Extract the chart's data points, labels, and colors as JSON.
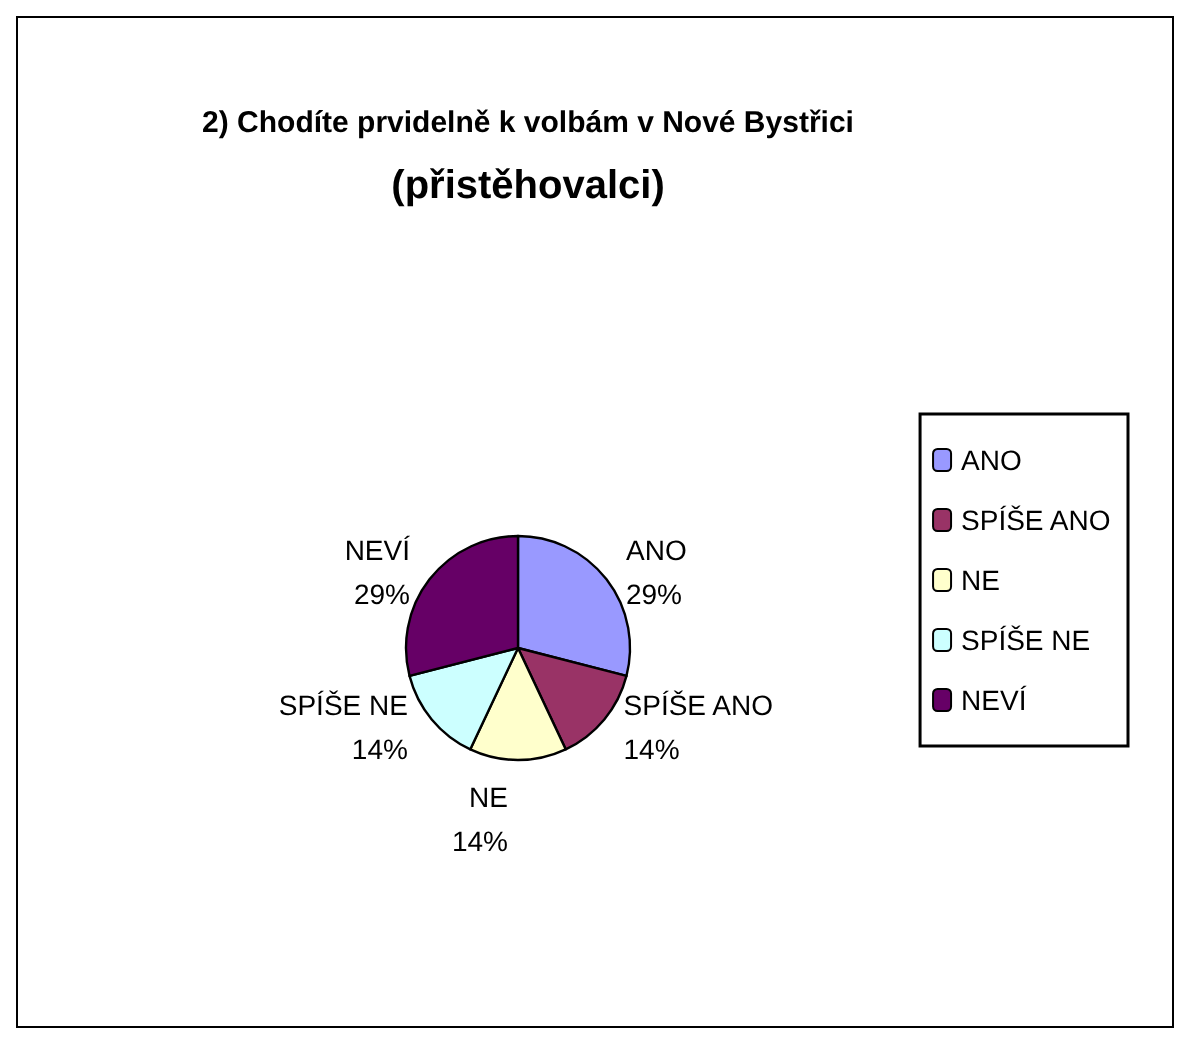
{
  "chart_data": {
    "type": "pie",
    "title": "2) Chodíte prvidelně k volbám v Nové Bystřici",
    "subtitle": "(přistěhovalci)",
    "categories": [
      "ANO",
      "SPÍŠE ANO",
      "NE",
      "SPÍŠE NE",
      "NEVÍ"
    ],
    "values": [
      29,
      14,
      14,
      14,
      29
    ],
    "colors": [
      "#9999ff",
      "#993366",
      "#ffffcc",
      "#ccffff",
      "#660066"
    ],
    "value_labels": [
      "29%",
      "14%",
      "14%",
      "14%",
      "29%"
    ],
    "legend": "right"
  }
}
